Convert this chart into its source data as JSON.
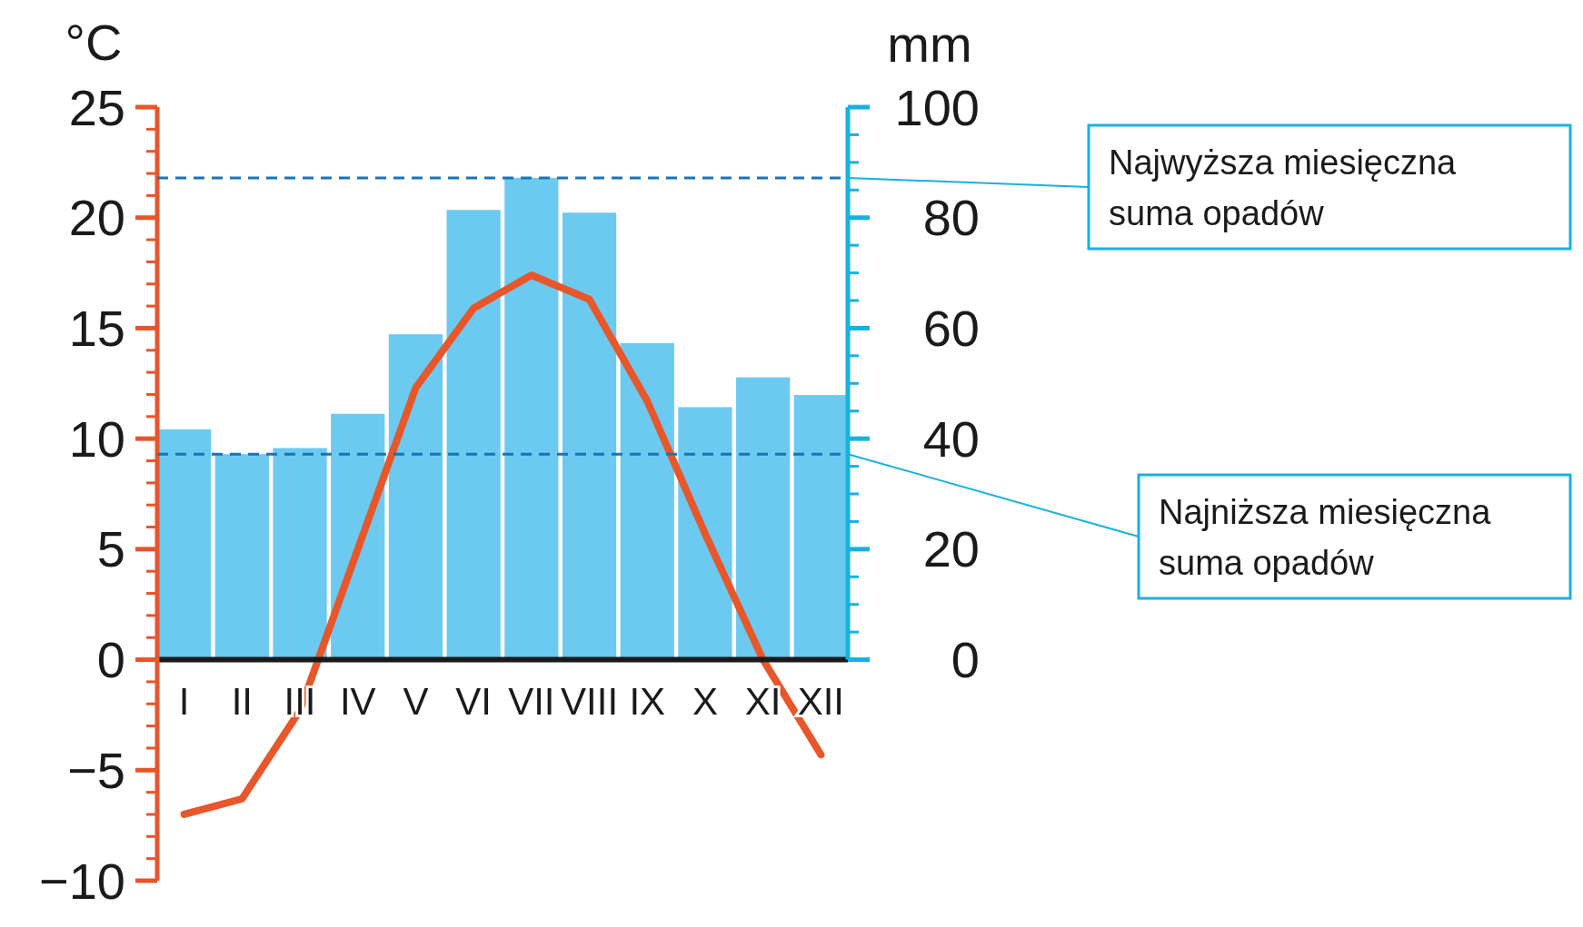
{
  "chart_data": {
    "type": "bar",
    "ylabel": "°C",
    "y2label": "mm",
    "categories": [
      "I",
      "II",
      "III",
      "IV",
      "V",
      "VI",
      "VII",
      "VIII",
      "IX",
      "X",
      "XI",
      "XII"
    ],
    "series": [
      {
        "axis": "y2",
        "color": "#6ccaf0",
        "values": [
          41.7,
          37.2,
          38.3,
          44.5,
          58.9,
          81.4,
          87.2,
          80.9,
          57.3,
          45.7,
          51.1,
          47.9
        ]
      },
      {
        "type": "line",
        "axis": "y",
        "color": "#e8562a",
        "values": [
          -7.0,
          -6.3,
          -2.3,
          5.0,
          12.3,
          15.9,
          17.4,
          16.3,
          11.7,
          5.7,
          0,
          -4.3
        ]
      }
    ],
    "ylim": [
      -10,
      25
    ],
    "yticks": [
      -10,
      -5,
      0,
      5,
      10,
      15,
      20,
      25
    ],
    "y2lim": [
      0,
      100
    ],
    "y2ticks": [
      0,
      20,
      40,
      60,
      80,
      100
    ],
    "ref_lines": [
      {
        "axis": "y2",
        "value": 87.2,
        "label": "Najwyższa miesięczna suma opadów",
        "color": "#1a73b8",
        "line_style": "dashed"
      },
      {
        "axis": "y2",
        "value": 37.2,
        "label": "Najniższa miesięczna suma opadów",
        "color": "#1a73b8",
        "line_style": "dashed"
      }
    ],
    "grid": false,
    "marker": "none"
  }
}
